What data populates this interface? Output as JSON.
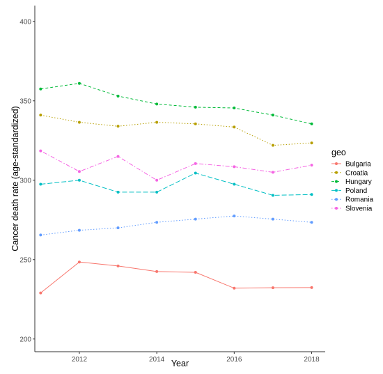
{
  "chart_data": {
    "type": "line",
    "xlabel": "Year",
    "ylabel": "Cancer death rate (age-standardized)",
    "xlim": [
      2010.85,
      2018.35
    ],
    "ylim": [
      192,
      410
    ],
    "x_ticks": [
      2012,
      2014,
      2016,
      2018
    ],
    "y_ticks": [
      200,
      250,
      300,
      350,
      400
    ],
    "grid": false,
    "legend": {
      "title": "geo",
      "placement": "right"
    },
    "x": [
      2011,
      2012,
      2013,
      2014,
      2015,
      2016,
      2017,
      2018
    ],
    "series": [
      {
        "name": "Bulgaria",
        "color": "#F8766D",
        "dash": "solid",
        "values": [
          229,
          248.5,
          246,
          242.5,
          242,
          232,
          232.3,
          232.4
        ]
      },
      {
        "name": "Croatia",
        "color": "#B79F00",
        "dash": "dotted",
        "values": [
          341,
          336.5,
          334,
          336.5,
          335.5,
          333.5,
          322,
          323.5
        ]
      },
      {
        "name": "Hungary",
        "color": "#00BA38",
        "dash": "dashed",
        "values": [
          357.5,
          361,
          353,
          348,
          346,
          345.5,
          341,
          335.5
        ]
      },
      {
        "name": "Poland",
        "color": "#00BFC4",
        "dash": "longdash",
        "values": [
          297.5,
          300,
          292.5,
          292.5,
          304.5,
          297.5,
          290.5,
          291
        ]
      },
      {
        "name": "Romania",
        "color": "#619CFF",
        "dash": "dotted",
        "values": [
          265.5,
          268.5,
          270,
          273.5,
          275.5,
          277.5,
          275.5,
          273.5
        ]
      },
      {
        "name": "Slovenia",
        "color": "#F564E3",
        "dash": "dotdash",
        "values": [
          318.5,
          305.5,
          315,
          300,
          310.5,
          308.5,
          305,
          309.5
        ]
      }
    ]
  }
}
